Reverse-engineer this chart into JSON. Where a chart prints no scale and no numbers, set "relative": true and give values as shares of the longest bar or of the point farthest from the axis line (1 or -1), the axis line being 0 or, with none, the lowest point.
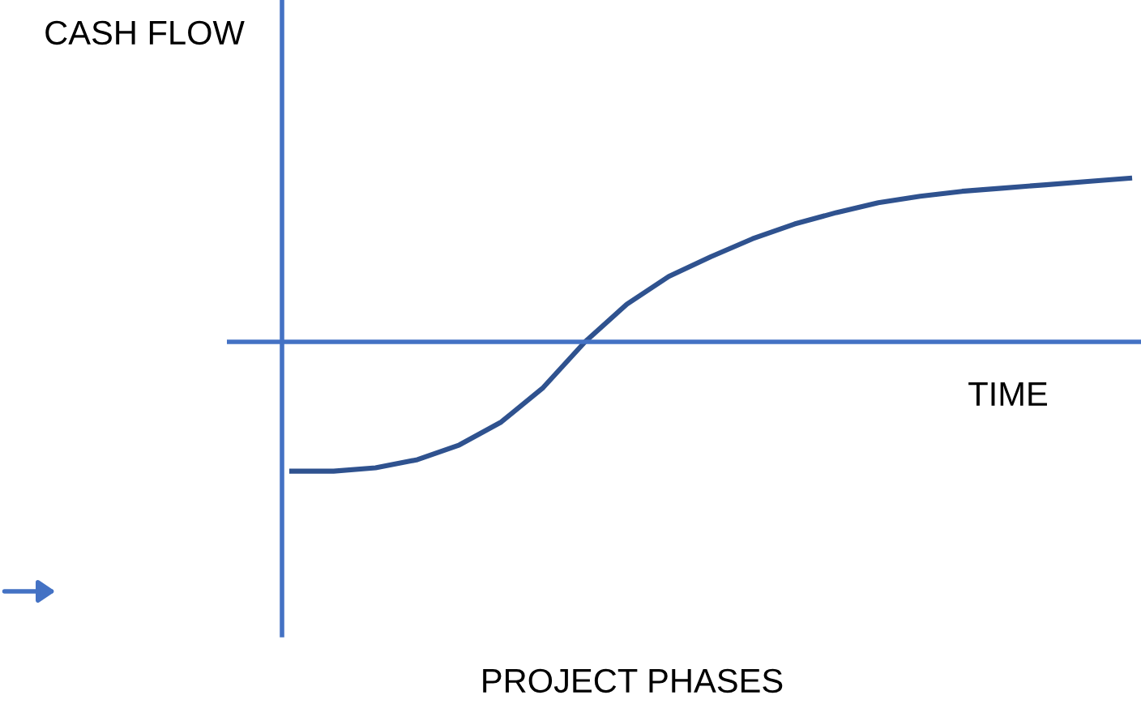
{
  "chart_data": {
    "type": "line",
    "relative": true,
    "ylabel": "CASH FLOW",
    "xlabel": "TIME",
    "annotations": [
      "PROJECT PHASES"
    ],
    "ref_lines": [
      {
        "axis": "y",
        "value": 0,
        "color": "#4472c4"
      }
    ],
    "categories": [
      null,
      null,
      null,
      null,
      null,
      null,
      null,
      null,
      null,
      null,
      null,
      null,
      null,
      null,
      null,
      null,
      null,
      null,
      null,
      null,
      null
    ],
    "series": [
      {
        "color": "#2f528f",
        "values": [
          -0.79,
          -0.79,
          -0.77,
          -0.72,
          -0.63,
          -0.49,
          -0.28,
          0,
          0.23,
          0.4,
          0.52,
          0.63,
          0.72,
          0.79,
          0.85,
          0.89,
          0.92,
          0.94,
          0.96,
          0.98,
          1
        ]
      }
    ],
    "marker": "none",
    "line_style": "solid"
  }
}
